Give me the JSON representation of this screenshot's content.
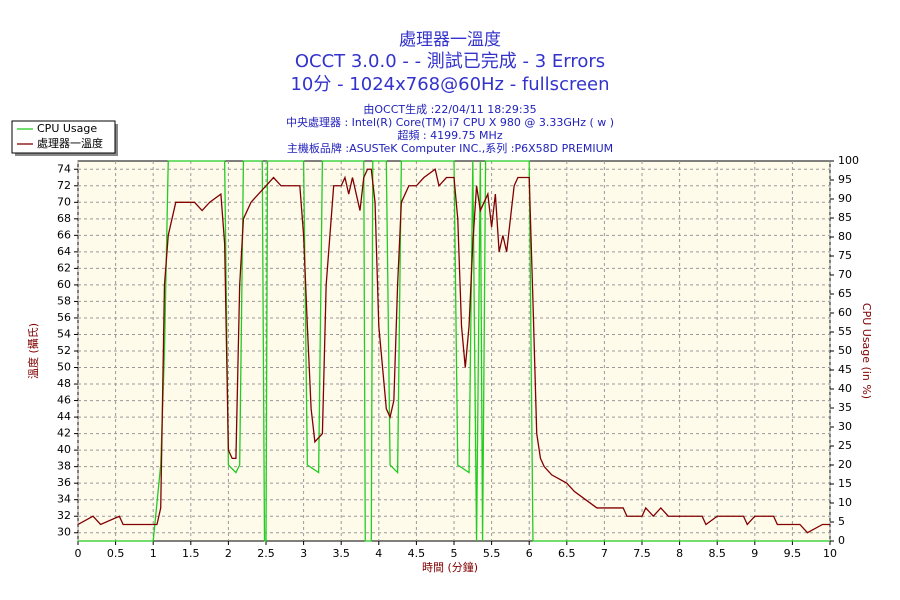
{
  "chart_data": {
    "type": "line",
    "title": "處理器一溫度",
    "subtitle": "OCCT 3.0.0 -  - 測試已完成 - 3 Errors",
    "subtitle2": "10分 - 1024x768@60Hz - fullscreen",
    "info": [
      "由OCCT生成 :22/04/11 18:29:35",
      "中央處理器 : Intel(R) Core(TM) i7 CPU X 980 @ 3.33GHz ( w  )",
      "超頻 : 4199.75 MHz",
      "主機板品牌 :ASUSTeK Computer INC.,系列 :P6X58D PREMIUM"
    ],
    "xlabel": "時間 (分鐘)",
    "ylabel": "溫度 (攝氏)",
    "y2label": "CPU Usage (in %)",
    "xlim": [
      0,
      10
    ],
    "xticks": [
      0,
      0.5,
      1,
      1.5,
      2,
      2.5,
      3,
      3.5,
      4,
      4.5,
      5,
      5.5,
      6,
      6.5,
      7,
      7.5,
      8,
      8.5,
      9,
      9.5,
      10
    ],
    "ylim": [
      29,
      75
    ],
    "yticks": [
      30,
      32,
      34,
      36,
      38,
      40,
      42,
      44,
      46,
      48,
      50,
      52,
      54,
      56,
      58,
      60,
      62,
      64,
      66,
      68,
      70,
      72,
      74
    ],
    "y2lim": [
      0,
      100
    ],
    "y2ticks": [
      0,
      5,
      10,
      15,
      20,
      25,
      30,
      35,
      40,
      45,
      50,
      55,
      60,
      65,
      70,
      75,
      80,
      85,
      90,
      95,
      100
    ],
    "grid": true,
    "legend": "top-left",
    "series": [
      {
        "name": "CPU Usage",
        "color": "#22cc22",
        "axis": "y2",
        "x": [
          0,
          1.0,
          1.05,
          1.1,
          1.15,
          1.2,
          1.95,
          2.0,
          2.1,
          2.15,
          2.2,
          2.45,
          2.48,
          2.5,
          2.52,
          3.0,
          3.05,
          3.2,
          3.25,
          3.8,
          3.82,
          3.9,
          3.92,
          4.1,
          4.15,
          4.25,
          4.3,
          5.0,
          5.05,
          5.2,
          5.25,
          5.3,
          5.35,
          5.38,
          5.42,
          6.0,
          6.05,
          10
        ],
        "values": [
          0,
          0,
          10,
          20,
          50,
          100,
          100,
          20,
          18,
          20,
          100,
          100,
          0,
          0,
          100,
          100,
          20,
          18,
          100,
          100,
          0,
          0,
          100,
          100,
          20,
          18,
          100,
          100,
          20,
          18,
          100,
          0,
          100,
          0,
          100,
          100,
          0,
          0
        ]
      },
      {
        "name": "處理器一溫度",
        "color": "#800000",
        "x": [
          0,
          0.2,
          0.3,
          0.55,
          0.6,
          1.05,
          1.1,
          1.15,
          1.2,
          1.25,
          1.3,
          1.55,
          1.65,
          1.75,
          1.9,
          1.95,
          2.0,
          2.05,
          2.1,
          2.15,
          2.2,
          2.3,
          2.4,
          2.5,
          2.6,
          2.7,
          2.95,
          3.0,
          3.05,
          3.1,
          3.15,
          3.25,
          3.3,
          3.4,
          3.5,
          3.55,
          3.6,
          3.65,
          3.7,
          3.75,
          3.8,
          3.85,
          3.9,
          3.95,
          4.0,
          4.1,
          4.15,
          4.2,
          4.25,
          4.3,
          4.4,
          4.5,
          4.6,
          4.75,
          4.8,
          4.9,
          5.0,
          5.05,
          5.1,
          5.15,
          5.2,
          5.25,
          5.3,
          5.35,
          5.45,
          5.5,
          5.55,
          5.6,
          5.65,
          5.7,
          5.8,
          5.85,
          6.0,
          6.05,
          6.1,
          6.15,
          6.2,
          6.3,
          6.5,
          6.6,
          6.75,
          6.9,
          7.25,
          7.3,
          7.5,
          7.55,
          7.65,
          7.75,
          7.85,
          8.3,
          8.35,
          8.5,
          8.85,
          8.9,
          9.0,
          9.25,
          9.3,
          9.6,
          9.7,
          9.9,
          10
        ],
        "values": [
          31,
          32,
          31,
          32,
          31,
          31,
          33,
          60,
          66,
          68,
          70,
          70,
          69,
          70,
          71,
          65,
          40,
          39,
          39,
          60,
          68,
          70,
          71,
          72,
          73,
          72,
          72,
          66,
          55,
          45,
          41,
          42,
          60,
          72,
          72,
          73,
          71,
          73,
          71,
          69,
          73,
          74,
          74,
          70,
          55,
          45,
          44,
          46,
          60,
          70,
          72,
          72,
          73,
          74,
          72,
          73,
          73,
          68,
          55,
          50,
          55,
          65,
          72,
          69,
          71,
          67,
          71,
          64,
          66,
          64,
          72,
          73,
          73,
          58,
          42,
          39,
          38,
          37,
          36,
          35,
          34,
          33,
          33,
          32,
          32,
          33,
          32,
          33,
          32,
          32,
          31,
          32,
          32,
          31,
          32,
          32,
          31,
          31,
          30,
          31,
          31
        ]
      }
    ]
  }
}
